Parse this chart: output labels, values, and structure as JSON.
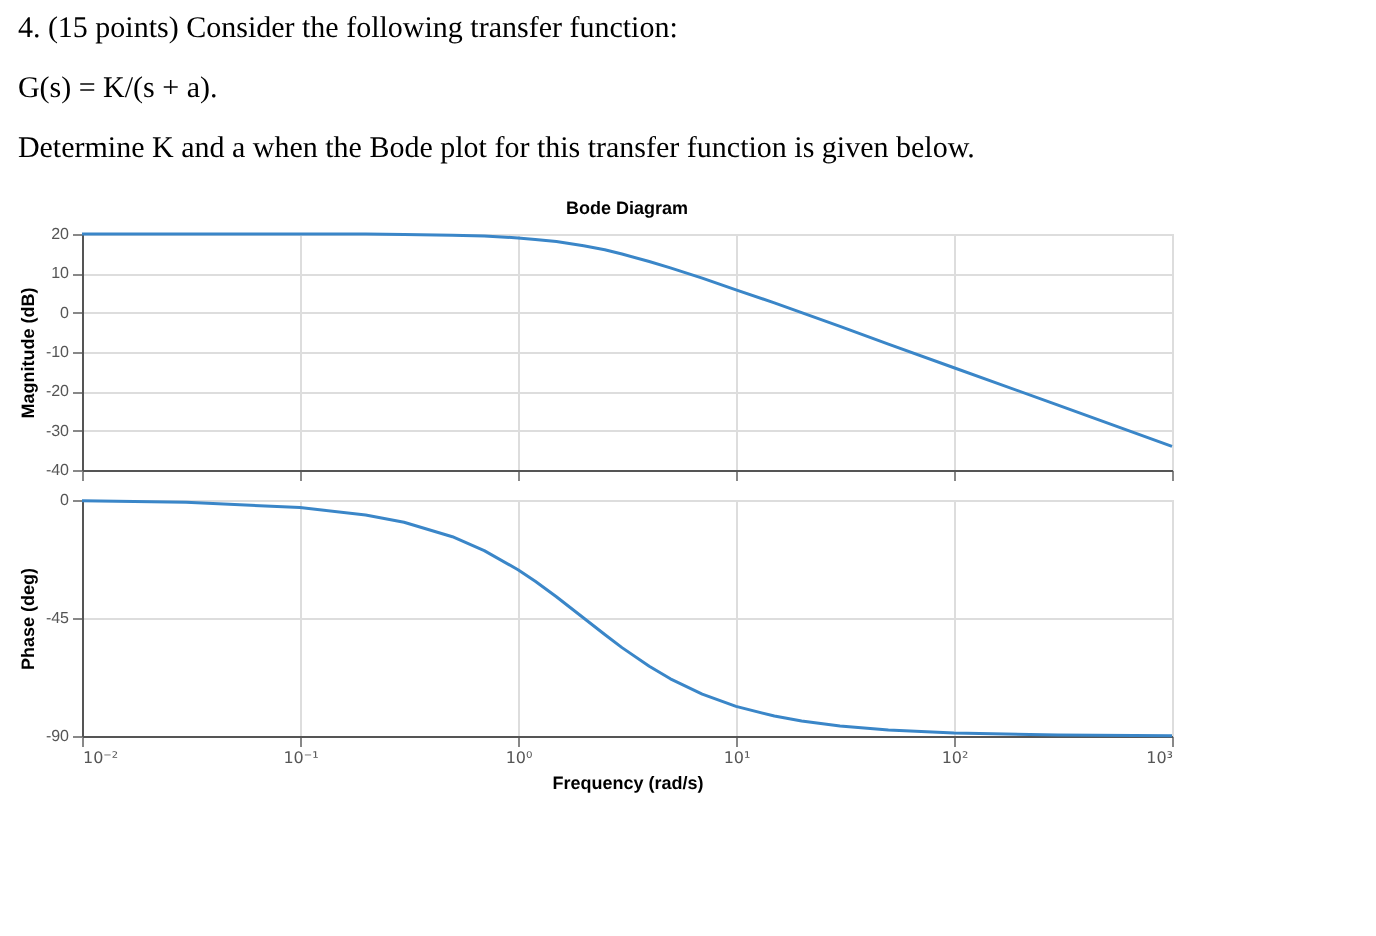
{
  "chart_data": [
    {
      "type": "line",
      "title": "Bode Diagram",
      "ylabel": "Magnitude (dB)",
      "annotations": [
        "4. (15 points) Consider the following transfer function:",
        "G(s) = K/(s + a).",
        "Determine K and a when the Bode plot for this transfer function is given below."
      ],
      "x": [
        0.01,
        0.03,
        0.1,
        0.2,
        0.3,
        0.5,
        0.7,
        1,
        1.2,
        1.5,
        2,
        2.5,
        3,
        4,
        5,
        7,
        10,
        15,
        20,
        30,
        50,
        100,
        300,
        1000
      ],
      "series": [
        {
          "color": "#3a86c8",
          "values": [
            20,
            20,
            20,
            20,
            19.9,
            19.7,
            19.5,
            19,
            18.6,
            18.1,
            17,
            16,
            14.9,
            13,
            11.4,
            8.8,
            5.8,
            2.5,
            0,
            -3.5,
            -8,
            -14,
            -23.5,
            -34
          ]
        }
      ],
      "log": "x",
      "xlim": [
        0.01,
        1000
      ],
      "xticks": [
        {
          "value": 0.01,
          "label": null
        },
        {
          "value": 0.1,
          "label": null
        },
        {
          "value": 1,
          "label": null
        },
        {
          "value": 10,
          "label": null
        },
        {
          "value": 100,
          "label": null
        },
        {
          "value": 1000,
          "label": null
        }
      ],
      "ylim": [
        -40,
        20
      ],
      "yticks": [
        -40,
        -30,
        -20,
        -10,
        0,
        10,
        20
      ],
      "grid": true,
      "tick_labels": "y"
    },
    {
      "type": "line",
      "xlabel": "Frequency  (rad/s)",
      "ylabel": "Phase (deg)",
      "x": [
        0.01,
        0.03,
        0.1,
        0.2,
        0.3,
        0.5,
        0.7,
        1,
        1.2,
        1.5,
        2,
        2.5,
        3,
        4,
        5,
        7,
        10,
        15,
        20,
        30,
        50,
        100,
        300,
        1000
      ],
      "series": [
        {
          "color": "#3a86c8",
          "values": [
            -0.3,
            -0.9,
            -2.9,
            -5.7,
            -8.5,
            -14,
            -19.3,
            -26.6,
            -31,
            -36.9,
            -45,
            -51.3,
            -56.3,
            -63.4,
            -68.2,
            -74,
            -78.7,
            -82.4,
            -84.3,
            -86.2,
            -87.7,
            -88.9,
            -89.6,
            -89.9
          ]
        }
      ],
      "log": "x",
      "xlim": [
        0.01,
        1000
      ],
      "xticks": [
        {
          "value": 0.01,
          "label": "10⁻²"
        },
        {
          "value": 0.1,
          "label": "10⁻¹"
        },
        {
          "value": 1,
          "label": "10⁰"
        },
        {
          "value": 10,
          "label": "10¹"
        },
        {
          "value": 100,
          "label": "10²"
        },
        {
          "value": 1000,
          "label": "10³"
        }
      ],
      "ylim": [
        -90,
        0
      ],
      "yticks": [
        -90,
        -45,
        0
      ],
      "grid": true
    }
  ]
}
